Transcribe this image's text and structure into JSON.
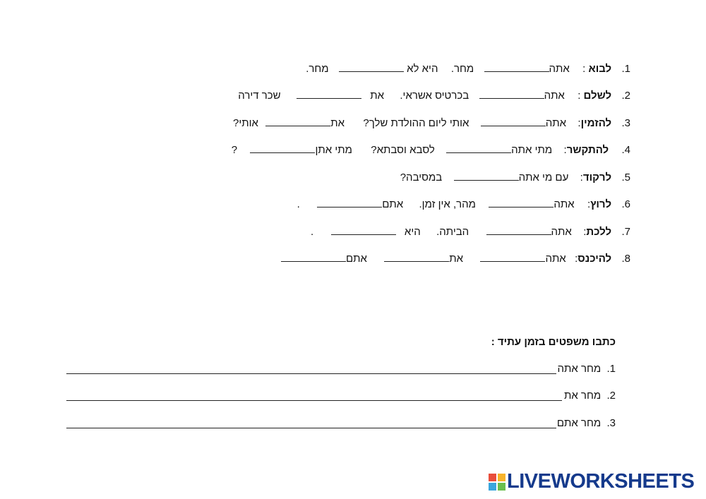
{
  "exercises": [
    {
      "num": "1.",
      "verb": "לבוא",
      "sep": " :",
      "parts": [
        "אתה",
        "מחר.",
        "היא לא",
        "מחר."
      ]
    },
    {
      "num": "2.",
      "verb": "לשלם",
      "sep": " :",
      "parts": [
        "אתה",
        "בכרטיס אשראי.",
        "את",
        "שכר דירה"
      ]
    },
    {
      "num": "3.",
      "verb": "להזמין",
      "sep": ":",
      "parts": [
        "אתה",
        "אותי ליום ההולדת שלך?",
        "את",
        "אותי?"
      ]
    },
    {
      "num": "4.",
      "verb": "להתקשר",
      "sep": ":",
      "parts": [
        "מתי אתה",
        "לסבא וסבתא?",
        "מתי אתן",
        "?"
      ]
    },
    {
      "num": "5.",
      "verb": "לרקוד",
      "sep": ":",
      "parts": [
        "עם מי אתה",
        "במסיבה?"
      ]
    },
    {
      "num": "6.",
      "verb": "לרוץ",
      "sep": ":",
      "parts": [
        "אתה",
        "מהר, אין זמן.",
        "אתם",
        "."
      ]
    },
    {
      "num": "7.",
      "verb": "ללכת",
      "sep": ":",
      "parts": [
        "אתה",
        "הביתה.",
        "היא",
        "."
      ]
    },
    {
      "num": "8.",
      "verb": "להיכנס",
      "sep": ":",
      "parts": [
        "אתה",
        "את",
        "אתם"
      ]
    }
  ],
  "section_title": "כתבו משפטים בזמן עתיד :",
  "write_items": [
    {
      "num": "1.",
      "prompt": "מחר אתה"
    },
    {
      "num": "2.",
      "prompt": "מחר את"
    },
    {
      "num": "3.",
      "prompt": "מחר אתם"
    }
  ],
  "logo": {
    "text": "LIVEWORKSHEETS",
    "cell_colors": [
      "#e94e3c",
      "#f7b32b",
      "#3aa6dd",
      "#6bbf4e"
    ],
    "text_color": "#153a8c"
  }
}
